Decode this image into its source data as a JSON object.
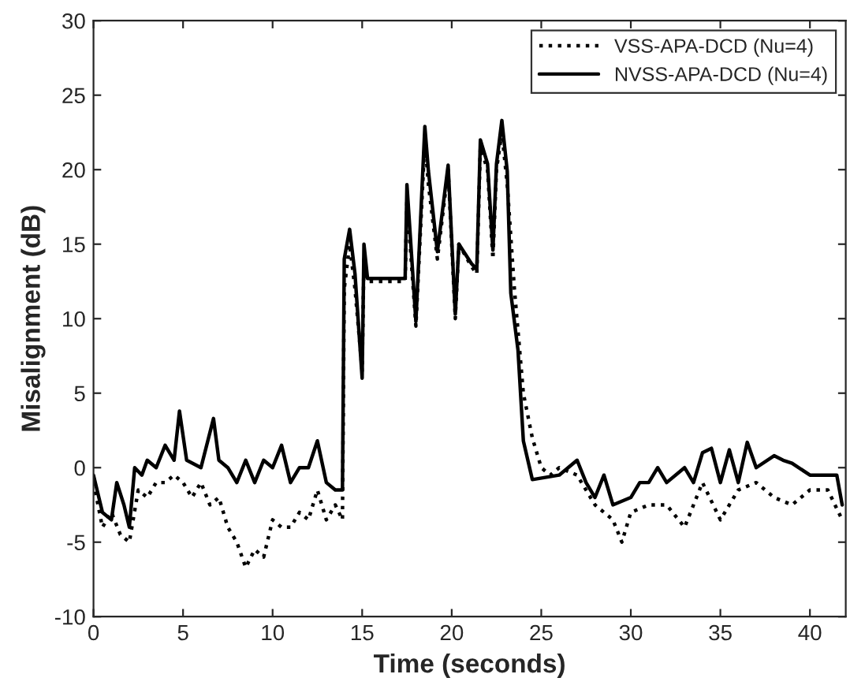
{
  "chart_data": {
    "type": "line",
    "xlabel": "Time (seconds)",
    "ylabel": "Misalignment (dB)",
    "xlim": [
      0,
      42
    ],
    "ylim": [
      -10,
      30
    ],
    "xticks": [
      0,
      5,
      10,
      15,
      20,
      25,
      30,
      35,
      40
    ],
    "yticks": [
      -10,
      -5,
      0,
      5,
      10,
      15,
      20,
      25,
      30
    ],
    "grid": false,
    "legend": "top right",
    "series": [
      {
        "name": "VSS-APA-DCD (Nu=4)",
        "color": "#000000",
        "line_style": "dotted",
        "x": [
          0,
          0.5,
          1,
          1.5,
          2,
          2.5,
          3,
          3.5,
          4,
          4.5,
          5,
          5.5,
          6,
          6.5,
          7,
          7.5,
          8,
          8.5,
          9,
          9.5,
          10,
          10.5,
          11,
          11.5,
          12,
          12.5,
          13,
          13.5,
          13.9,
          14,
          14.3,
          14.6,
          15,
          15.1,
          15.3,
          17.4,
          17.5,
          18,
          18.5,
          18.7,
          19.2,
          19.8,
          20.2,
          20.4,
          21.1,
          21.4,
          21.6,
          22,
          22.3,
          22.5,
          22.8,
          23.1,
          23.5,
          24,
          24.5,
          25,
          25.5,
          26,
          27,
          28,
          29,
          29.5,
          30,
          31,
          32,
          33,
          34,
          35,
          36,
          37,
          38,
          39,
          40,
          41,
          41.8
        ],
        "values": [
          -1,
          -4,
          -3,
          -4.5,
          -5,
          -1.5,
          -2,
          -1,
          -1,
          -0.5,
          -1,
          -2,
          -1,
          -2.5,
          -2,
          -4,
          -5,
          -6.7,
          -5.5,
          -6,
          -3.5,
          -4,
          -4,
          -3,
          -3.5,
          -1.5,
          -3.5,
          -2.5,
          -3.5,
          12,
          15,
          12,
          6.5,
          14,
          12.5,
          12.5,
          18,
          9.5,
          22,
          19,
          14,
          20,
          10,
          15,
          13.5,
          13,
          21.5,
          20,
          14,
          20,
          22.5,
          19,
          12,
          5,
          2,
          0,
          -0.5,
          0,
          -0.5,
          -2.5,
          -3.5,
          -5,
          -3,
          -2.5,
          -2.5,
          -4,
          -1,
          -3.5,
          -1.5,
          -1,
          -2,
          -2.5,
          -1.5,
          -1.5,
          -3.5
        ]
      },
      {
        "name": "NVSS-APA-DCD (Nu=4)",
        "color": "#000000",
        "line_style": "solid",
        "x": [
          0,
          0.5,
          1,
          1.3,
          1.7,
          2,
          2.3,
          2.7,
          3,
          3.5,
          4,
          4.5,
          4.8,
          5.2,
          6,
          6.7,
          7,
          7.5,
          8,
          8.5,
          9,
          9.5,
          10,
          10.5,
          11,
          11.5,
          12,
          12.5,
          13,
          13.5,
          13.9,
          14,
          14.3,
          14.6,
          15,
          15.1,
          15.3,
          17.4,
          17.5,
          18,
          18.5,
          18.7,
          19.2,
          19.8,
          20.2,
          20.4,
          21.1,
          21.4,
          21.6,
          22,
          22.3,
          22.5,
          22.8,
          23.1,
          23.3,
          23.7,
          24,
          24.5,
          26,
          27,
          27.5,
          28,
          28.5,
          29,
          30,
          30.5,
          31,
          31.5,
          32,
          33,
          33.5,
          34,
          34.5,
          35,
          35.5,
          36,
          36.5,
          37,
          38,
          38.5,
          39,
          40,
          41,
          41.5,
          41.8
        ],
        "values": [
          -0.5,
          -3,
          -3.5,
          -1,
          -2.5,
          -4,
          0,
          -0.5,
          0.5,
          0,
          1.5,
          0.5,
          3.8,
          0.5,
          0,
          3.3,
          0.5,
          0,
          -1,
          0.5,
          -1,
          0.5,
          0,
          1.5,
          -1,
          0,
          0,
          1.8,
          -1,
          -1.5,
          -1.5,
          14,
          16,
          13,
          6,
          15,
          12.7,
          12.7,
          19,
          9.8,
          22.9,
          19.9,
          14.5,
          20.3,
          10.3,
          15,
          13.7,
          13.3,
          22,
          20.4,
          14.6,
          20.4,
          23.3,
          19.9,
          11.7,
          7.9,
          1.8,
          -0.8,
          -0.5,
          0.5,
          -1,
          -2,
          -0.5,
          -2.5,
          -2,
          -1,
          -1,
          0,
          -1,
          0,
          -1,
          1,
          1.3,
          -1,
          1.2,
          -1,
          1.7,
          0,
          0.8,
          0.5,
          0.3,
          -0.5,
          -0.5,
          -0.5,
          -2.5
        ]
      }
    ]
  }
}
